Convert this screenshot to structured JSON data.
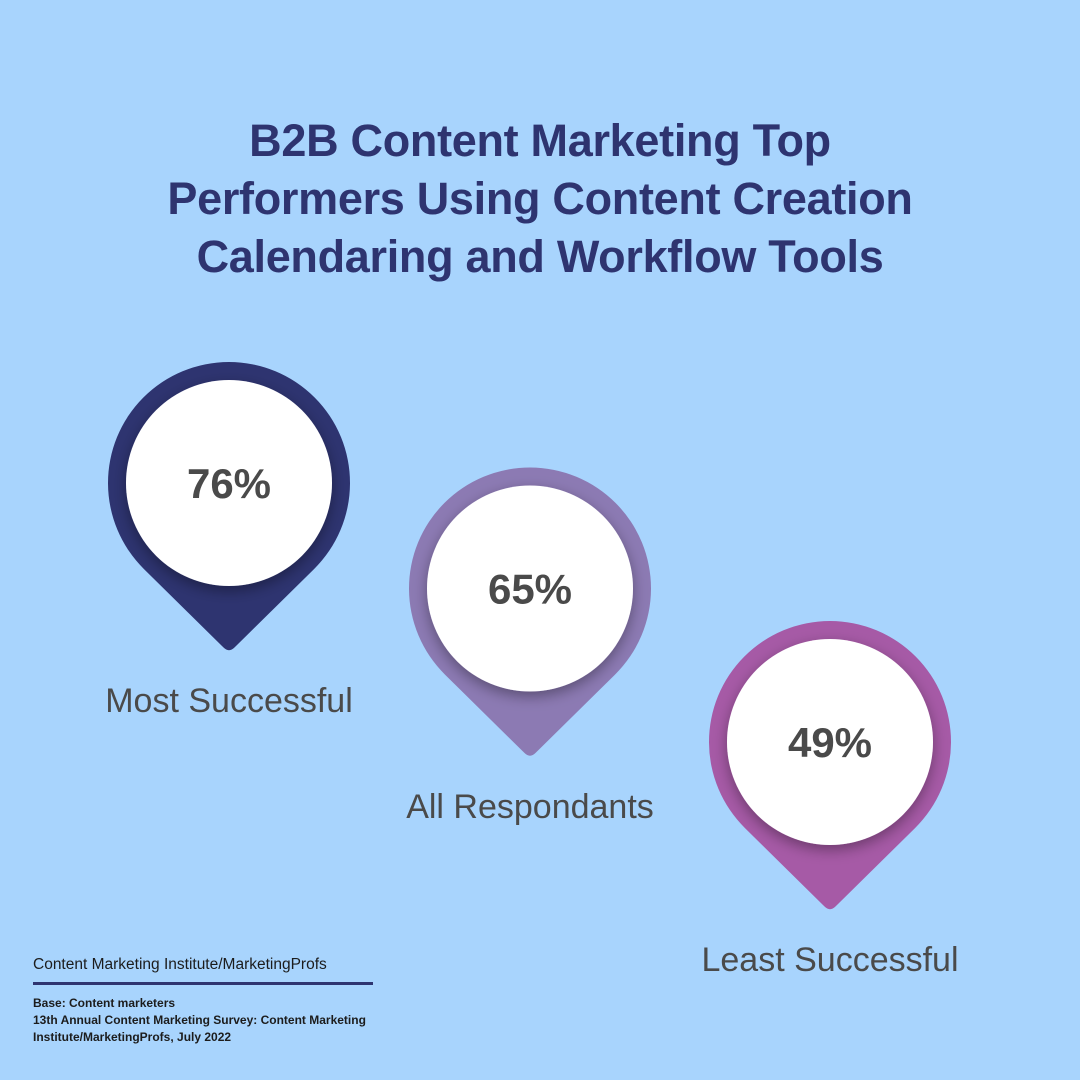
{
  "title_lines": [
    "B2B Content Marketing Top",
    "Performers Using Content Creation",
    "Calendaring and Workflow Tools"
  ],
  "chart_data": {
    "type": "bar",
    "title": "B2B Content Marketing Top Performers Using Content Creation Calendaring and Workflow Tools",
    "categories": [
      "Most Successful",
      "All Respondants",
      "Least Successful"
    ],
    "values": [
      76,
      65,
      49
    ],
    "value_labels": [
      "76%",
      "65%",
      "49%"
    ],
    "unit": "%",
    "colors": [
      "#2e3470",
      "#8c7ab3",
      "#a65aa6"
    ]
  },
  "pin_colors": {
    "value_text": "#4a4a4a",
    "circle_fill": "#ffffff"
  },
  "source": {
    "name": "Content Marketing Institute/MarketingProfs",
    "notes": [
      "Base: Content marketers",
      "13th Annual Content Marketing Survey: Content Marketing",
      "Institute/MarketingProfs, July 2022"
    ]
  }
}
